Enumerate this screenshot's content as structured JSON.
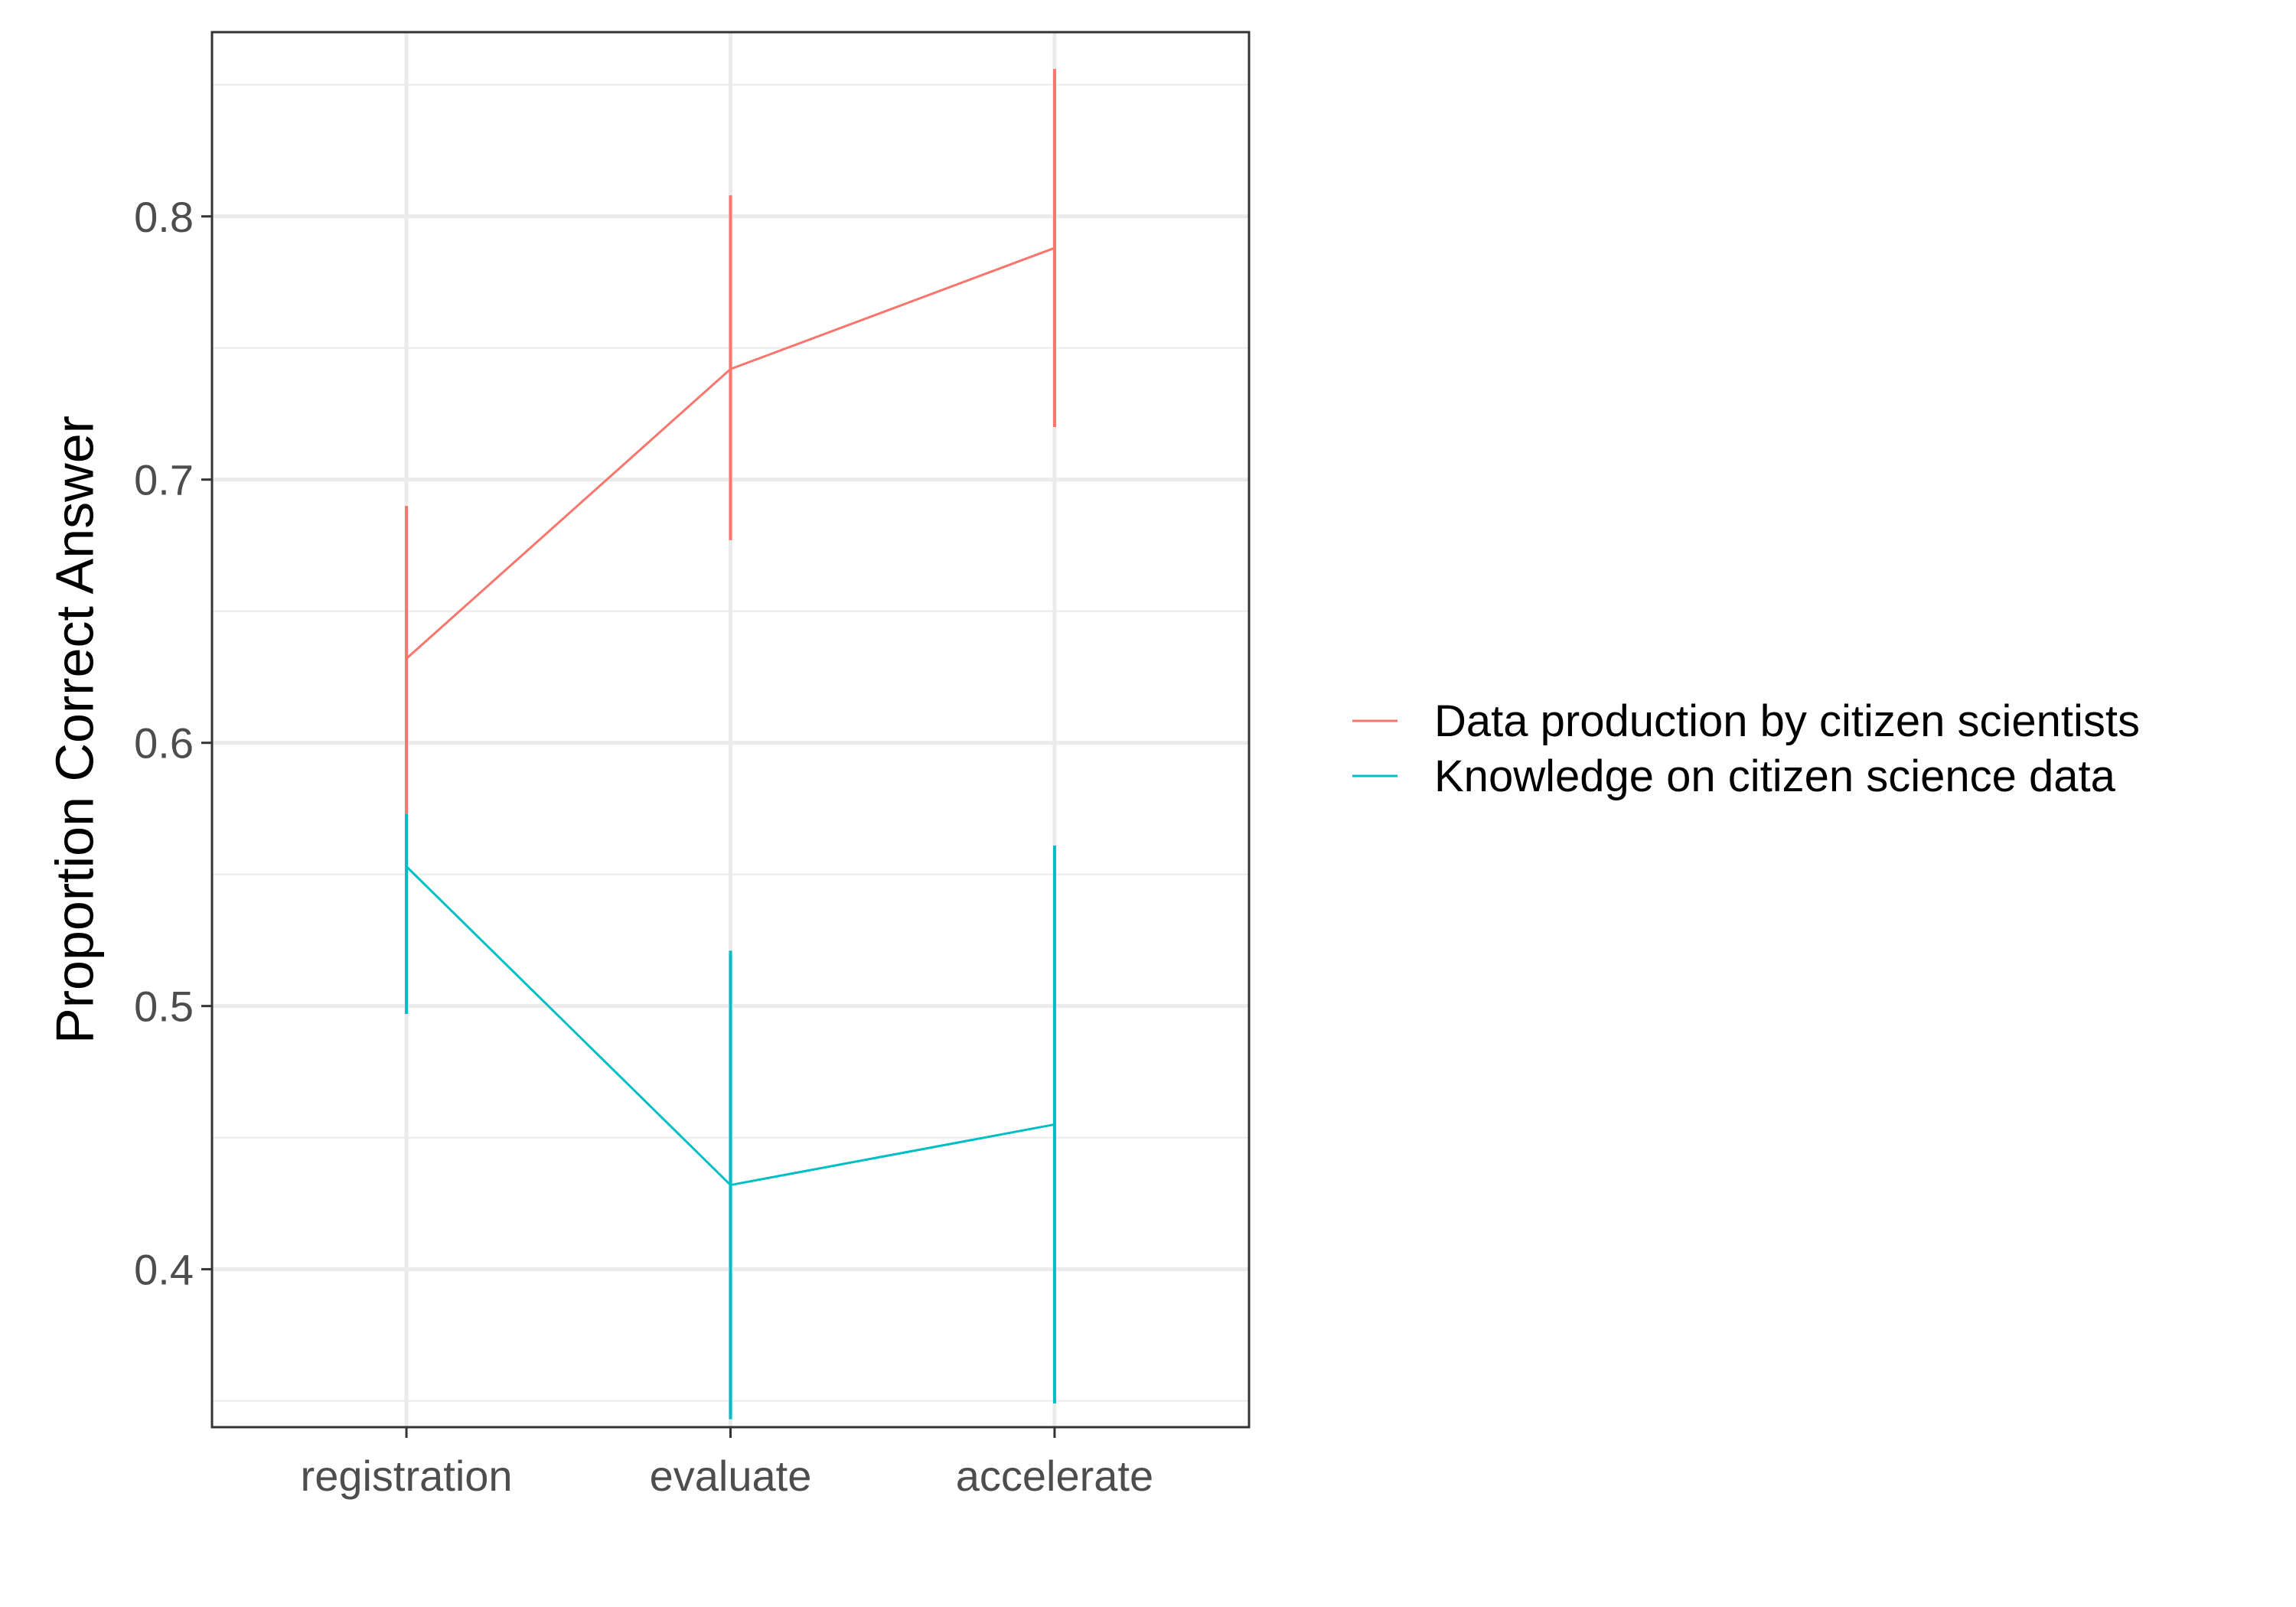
{
  "chart_data": {
    "type": "line",
    "title": "",
    "xlabel": "",
    "ylabel": "Proportion Correct Answer",
    "categories": [
      "registration",
      "evaluate",
      "accelerate"
    ],
    "ylim": [
      0.34,
      0.87
    ],
    "yticks": [
      0.4,
      0.5,
      0.6,
      0.7,
      0.8
    ],
    "ytick_labels": [
      "0.4",
      "0.5",
      "0.6",
      "0.7",
      "0.8"
    ],
    "grid": true,
    "legend_position": "right",
    "series": [
      {
        "name": "Data production by citizen scientists",
        "color": "#F8766D",
        "values": [
          0.632,
          0.742,
          0.788
        ],
        "lower": [
          0.573,
          0.677,
          0.72
        ],
        "upper": [
          0.69,
          0.808,
          0.856
        ]
      },
      {
        "name": "Knowledge on citizen science data",
        "color": "#00BFC4",
        "values": [
          0.553,
          0.432,
          0.455
        ],
        "lower": [
          0.497,
          0.343,
          0.349
        ],
        "upper": [
          0.573,
          0.521,
          0.561
        ]
      }
    ]
  }
}
